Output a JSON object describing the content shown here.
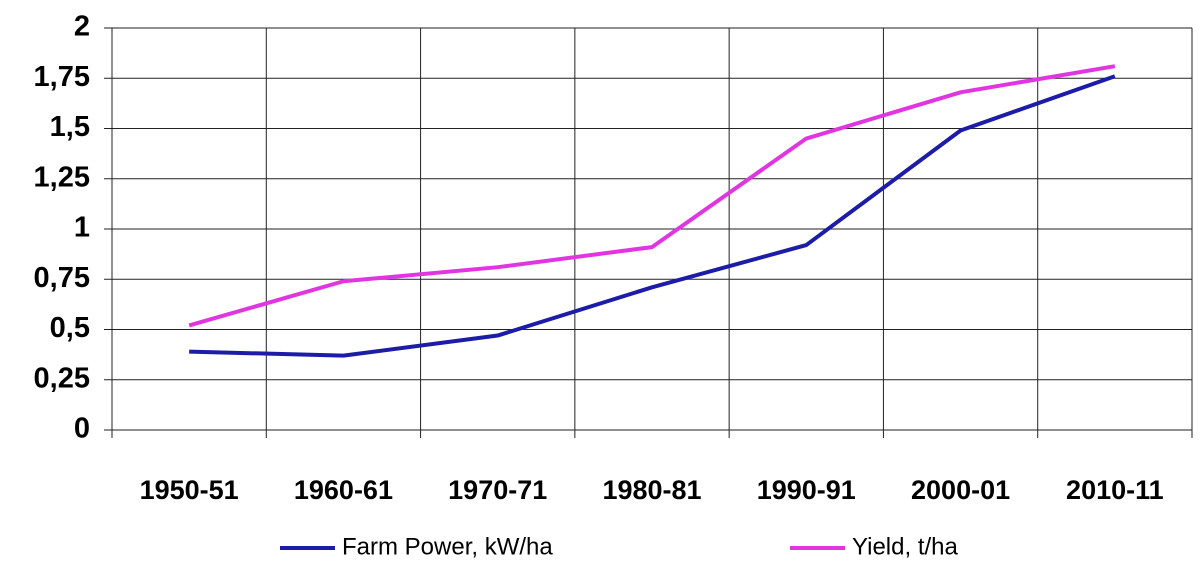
{
  "chart_data": {
    "type": "line",
    "categories": [
      "1950-51",
      "1960-61",
      "1970-71",
      "1980-81",
      "1990-91",
      "2000-01",
      "2010-11"
    ],
    "series": [
      {
        "name": "Farm Power, kW/ha",
        "color": "#1c1ca8",
        "values": [
          0.39,
          0.37,
          0.47,
          0.71,
          0.92,
          1.49,
          1.76
        ]
      },
      {
        "name": "Yield, t/ha",
        "color": "#e035e0",
        "values": [
          0.52,
          0.74,
          0.81,
          0.91,
          1.45,
          1.68,
          1.81
        ]
      }
    ],
    "ylim": [
      0,
      2
    ],
    "yticks": [
      0,
      {
        "value": 0.25,
        "label": "0,25"
      },
      {
        "value": 0.5,
        "label": "0,5"
      },
      {
        "value": 0.75,
        "label": "0,75"
      },
      1,
      {
        "value": 1.25,
        "label": "1,25"
      },
      {
        "value": 1.5,
        "label": "1,5"
      },
      {
        "value": 1.75,
        "label": "1,75"
      },
      2
    ],
    "grid": true,
    "legend": "bottom"
  }
}
